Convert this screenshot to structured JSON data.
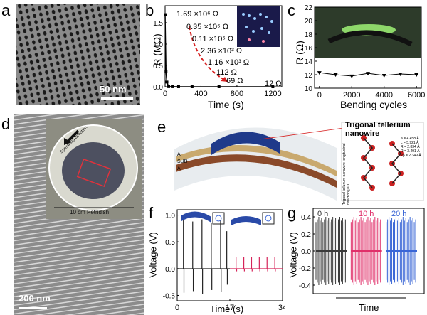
{
  "panels": {
    "a": {
      "label": "a",
      "scalebar": "50 nm"
    },
    "b": {
      "label": "b",
      "chart_data": {
        "type": "line",
        "xlabel": "Time (s)",
        "ylabel": "R (MΩ)",
        "xlim": [
          0,
          1300
        ],
        "ylim": [
          0,
          1.9
        ],
        "xticks": [
          "0",
          "400",
          "800",
          "1200"
        ],
        "yticks": [
          "0.0",
          "0.5",
          "1.0",
          "1.5"
        ],
        "x": [
          0,
          10,
          20,
          40,
          80,
          150,
          300,
          600,
          1200
        ],
        "series": [
          {
            "values": [
              1.69,
              0.35,
              0.11,
              0.00236,
              0.00116,
              0.000112,
              6.9e-05,
              1.2e-05,
              1.2e-05
            ]
          }
        ],
        "annotations": [
          "1.69 ×10⁶ Ω",
          "0.35 ×10⁶ Ω",
          "0.11 ×10⁶ Ω",
          "2.36 ×10³ Ω",
          "1.16 ×10³ Ω",
          "112 Ω",
          "69 Ω",
          "12 Ω"
        ]
      }
    },
    "c": {
      "label": "c",
      "chart_data": {
        "type": "line",
        "xlabel": "Bending cycles",
        "ylabel": "R (Ω)",
        "xlim": [
          -300,
          6300
        ],
        "ylim": [
          10,
          22
        ],
        "xticks": [
          "0",
          "2000",
          "4000",
          "6000"
        ],
        "yticks": [
          "10",
          "12",
          "14",
          "16",
          "18",
          "20",
          "22"
        ],
        "x": [
          0,
          1000,
          2000,
          3000,
          4000,
          5000,
          6000
        ],
        "series": [
          {
            "values": [
              12.3,
              12.0,
              11.8,
              12.2,
              11.9,
              12.1,
              12.0
            ]
          }
        ]
      }
    },
    "d": {
      "label": "d",
      "inset_arrow": "Spreading direction",
      "inset_caption": "10 cm Petridish",
      "scalebar": "200 nm"
    },
    "e": {
      "label": "e",
      "layers": [
        "Al",
        "SUB",
        "Al"
      ],
      "title": "Trigonal tellerium nanowire",
      "axis_label": "Trigonal tellurium nanowire longitudinal direction [001]",
      "params": [
        "a = 4.458 Å",
        "c = 5.921 Å",
        "R = 2.834 Å",
        "R = 3.491 Å",
        "2ρ = 2.349 Å"
      ]
    },
    "f": {
      "label": "f",
      "chart_data": {
        "type": "line",
        "xlabel": "Time (s)",
        "ylabel": "Voltage (V)",
        "xlim": [
          0,
          34
        ],
        "ylim": [
          -0.6,
          1.1
        ],
        "xticks": [
          "0",
          "17",
          "34"
        ],
        "yticks": [
          "-0.5",
          "0.0",
          "0.5",
          "1.0"
        ],
        "series": [
          {
            "color": "#222222",
            "peaks": [
              0.95,
              0.88,
              0.92,
              0.85,
              0.9,
              0.7
            ],
            "troughs": [
              -0.45,
              -0.42,
              -0.47,
              -0.4,
              -0.44,
              -0.3
            ],
            "t": [
              2,
              5,
              8,
              11,
              14,
              16
            ]
          },
          {
            "color": "#d6245a",
            "peaks": [
              0.22,
              0.22,
              0.22,
              0.22,
              0.22,
              0.22
            ],
            "troughs": [
              -0.05,
              -0.05,
              -0.05,
              -0.05,
              -0.05,
              -0.05
            ],
            "t": [
              19,
              21.5,
              24,
              26.5,
              29,
              31.5
            ]
          }
        ]
      }
    },
    "g": {
      "label": "g",
      "chart_data": {
        "type": "line",
        "xlabel": "Time",
        "ylabel": "Voltage (V)",
        "ylim": [
          -0.5,
          0.5
        ],
        "yticks": [
          "-0.4",
          "-0.2",
          "0.0",
          "0.2",
          "0.4"
        ],
        "series": [
          {
            "name": "0 h",
            "color": "#3a3a3a",
            "amp": 0.4
          },
          {
            "name": "10 h",
            "color": "#e0306a",
            "amp": 0.4
          },
          {
            "name": "20 h",
            "color": "#3a66d6",
            "amp": 0.4
          }
        ]
      }
    }
  },
  "colors": {
    "pink": "#d6245a",
    "blue": "#3a66d6",
    "dark": "#222222",
    "red_arrow": "#d62020"
  }
}
